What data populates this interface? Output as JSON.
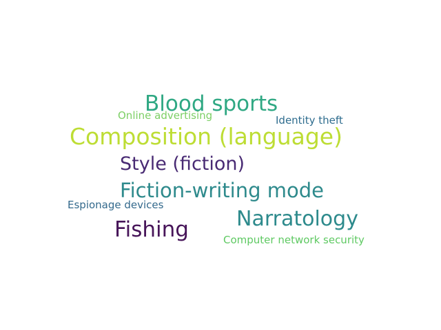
{
  "words": [
    {
      "text": "Blood sports",
      "color": "#2fa883"
    },
    {
      "text": "Online advertising",
      "color": "#7ccf65"
    },
    {
      "text": "Identity theft",
      "color": "#2e6c8e"
    },
    {
      "text": "Composition (language)",
      "color": "#bddd34"
    },
    {
      "text": "Style (fiction)",
      "color": "#482a73"
    },
    {
      "text": "Fiction-writing mode",
      "color": "#2e8a8c"
    },
    {
      "text": "Espionage devices",
      "color": "#33698c"
    },
    {
      "text": "Narratology",
      "color": "#2d8a8c"
    },
    {
      "text": "Fishing",
      "color": "#471559"
    },
    {
      "text": "Computer network security",
      "color": "#5ec962"
    }
  ]
}
